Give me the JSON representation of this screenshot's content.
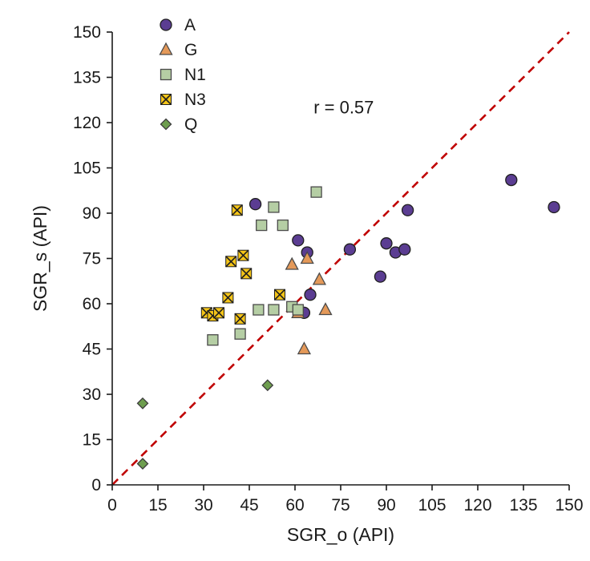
{
  "chart_data": {
    "type": "scatter",
    "title": "",
    "xlabel": "SGR_o (API)",
    "ylabel": "SGR_s (API)",
    "xlim": [
      0,
      150
    ],
    "ylim": [
      0,
      150
    ],
    "xticks": [
      0,
      15,
      30,
      45,
      60,
      75,
      90,
      105,
      120,
      135,
      150
    ],
    "yticks": [
      0,
      15,
      30,
      45,
      60,
      75,
      90,
      105,
      120,
      135,
      150
    ],
    "grid": "off",
    "legend_position": "top-left-inside",
    "annotation": {
      "text": "r = 0.57",
      "x": 76,
      "y": 123
    },
    "reference_line": {
      "from": [
        0,
        0
      ],
      "to": [
        150,
        150
      ],
      "color": "#c00000",
      "style": "dashed"
    },
    "axis_color": "#1a1a1a",
    "series": [
      {
        "name": "A",
        "marker": "circle",
        "fill": "#5b3d92",
        "stroke": "#1f1f1f",
        "points": [
          [
            47,
            93
          ],
          [
            61,
            81
          ],
          [
            64,
            77
          ],
          [
            65,
            63
          ],
          [
            63,
            57
          ],
          [
            78,
            78
          ],
          [
            88,
            69
          ],
          [
            90,
            80
          ],
          [
            93,
            77
          ],
          [
            96,
            78
          ],
          [
            97,
            91
          ],
          [
            131,
            101
          ],
          [
            145,
            92
          ]
        ]
      },
      {
        "name": "G",
        "marker": "triangle",
        "fill": "#e49959",
        "stroke": "#4a4a4a",
        "points": [
          [
            59,
            73
          ],
          [
            64,
            75
          ],
          [
            63,
            45
          ],
          [
            68,
            68
          ],
          [
            70,
            58
          ],
          [
            61,
            57
          ]
        ]
      },
      {
        "name": "N1",
        "marker": "square",
        "fill": "#b5cea4",
        "stroke": "#4a4a4a",
        "points": [
          [
            49,
            86
          ],
          [
            53,
            92
          ],
          [
            56,
            86
          ],
          [
            67,
            97
          ],
          [
            48,
            58
          ],
          [
            53,
            58
          ],
          [
            59,
            59
          ],
          [
            61,
            58
          ],
          [
            33,
            48
          ],
          [
            42,
            50
          ]
        ]
      },
      {
        "name": "N3",
        "marker": "x-square",
        "fill": "#f5c518",
        "stroke": "#1f1f1f",
        "points": [
          [
            41,
            91
          ],
          [
            39,
            74
          ],
          [
            43,
            76
          ],
          [
            44,
            70
          ],
          [
            38,
            62
          ],
          [
            31,
            57
          ],
          [
            33,
            56
          ],
          [
            35,
            57
          ],
          [
            42,
            55
          ],
          [
            55,
            63
          ]
        ]
      },
      {
        "name": "Q",
        "marker": "diamond",
        "fill": "#6e9e4f",
        "stroke": "#3d3d3d",
        "points": [
          [
            10,
            27
          ],
          [
            10,
            7
          ],
          [
            51,
            33
          ]
        ]
      }
    ]
  }
}
